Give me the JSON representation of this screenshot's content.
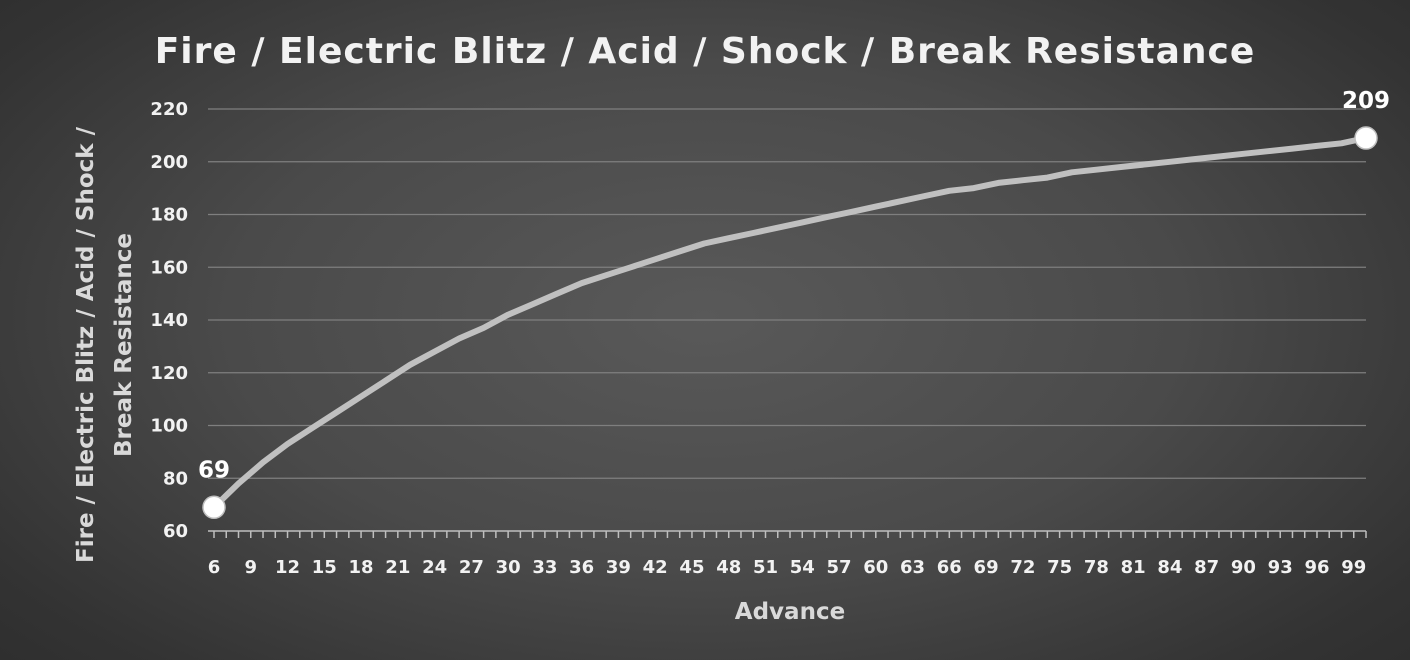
{
  "chart_data": {
    "type": "line",
    "title": "Fire / Electric Blitz / Acid / Shock / Break Resistance",
    "xlabel": "Advance",
    "ylabel_lines": [
      "Fire / Electric Blitz / Acid / Shock /",
      "Break Resistance"
    ],
    "xlim": [
      6,
      100
    ],
    "ylim": [
      60,
      220
    ],
    "yticks": [
      60,
      80,
      100,
      120,
      140,
      160,
      180,
      200,
      220
    ],
    "xticks": [
      6,
      9,
      12,
      15,
      18,
      21,
      24,
      27,
      30,
      33,
      36,
      39,
      42,
      45,
      48,
      51,
      54,
      57,
      60,
      63,
      66,
      69,
      72,
      75,
      78,
      81,
      84,
      87,
      90,
      93,
      96,
      99
    ],
    "grid": true,
    "legend": "none",
    "series": [
      {
        "color": "#c0c0c0",
        "x": [
          6,
          8,
          10,
          12,
          14,
          16,
          18,
          20,
          22,
          24,
          26,
          28,
          30,
          32,
          34,
          36,
          38,
          40,
          42,
          44,
          46,
          48,
          50,
          52,
          54,
          56,
          58,
          60,
          62,
          64,
          66,
          68,
          70,
          72,
          74,
          76,
          78,
          80,
          82,
          84,
          86,
          88,
          90,
          92,
          94,
          96,
          98,
          100
        ],
        "y": [
          69,
          78,
          86,
          93,
          99,
          105,
          111,
          117,
          123,
          128,
          133,
          137,
          142,
          146,
          150,
          154,
          157,
          160,
          163,
          166,
          169,
          171,
          173,
          175,
          177,
          179,
          181,
          183,
          185,
          187,
          189,
          190,
          192,
          193,
          194,
          196,
          197,
          198,
          199,
          200,
          201,
          202,
          203,
          204,
          205,
          206,
          207,
          209
        ]
      }
    ],
    "annotations": [
      {
        "x": 6,
        "y": 69,
        "label": "69",
        "position": "above"
      },
      {
        "x": 100,
        "y": 209,
        "label": "209",
        "position": "above"
      }
    ],
    "marker_color": "#ffffff"
  }
}
